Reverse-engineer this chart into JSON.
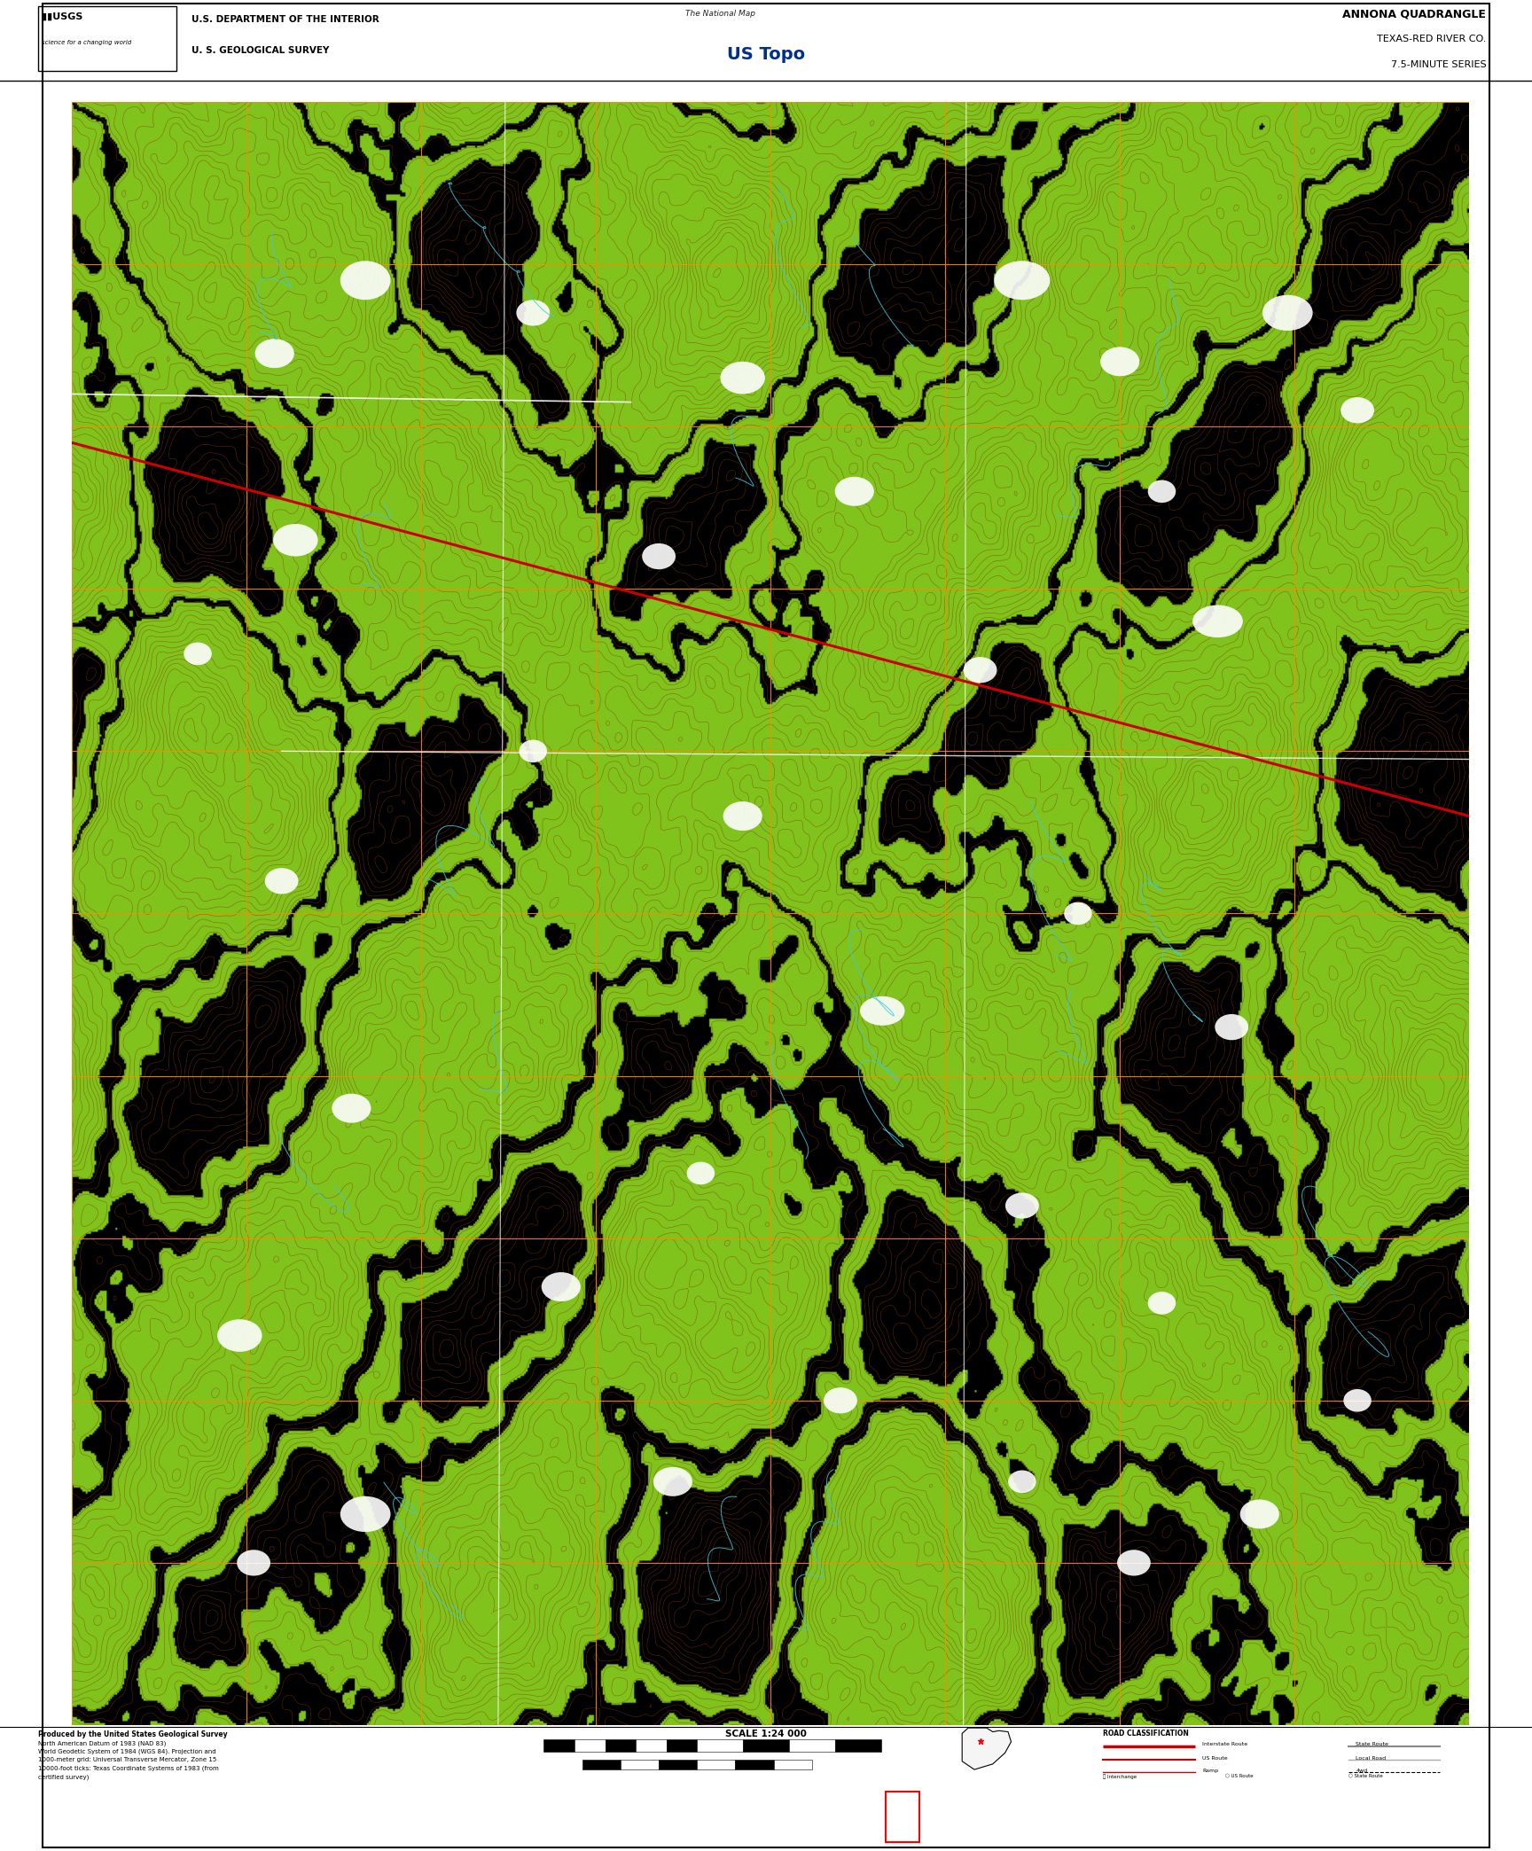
{
  "title_line1": "ANNONA QUADRANGLE",
  "title_line2": "TEXAS-RED RIVER CO.",
  "title_line3": "7.5-MINUTE SERIES",
  "header_left_line1": "U.S. DEPARTMENT OF THE INTERIOR",
  "header_left_line2": "U. S. GEOLOGICAL SURVEY",
  "header_center_line1": "The National Map",
  "header_center_line2": "US Topo",
  "scale_text": "SCALE 1:24 000",
  "produced_text": "Produced by the United States Geological Survey",
  "nad_text": "North American Datum of 1983 (NAD 83)",
  "wgs_text": "World Geodetic System of 1984 (WGS 84). Projection and",
  "text4": "1000-meter grid: Universal Transverse Mercator, Zone 15",
  "text5": "10000-foot ticks: Texas Coordinate Systems of 1983 (from",
  "text6": "certified survey)",
  "map_bg": "#000000",
  "vegetation_color": "#7fc31c",
  "contour_color": "#8B3A0A",
  "water_color": "#80d8f0",
  "road_color_primary": "#cc0000",
  "road_color_secondary": "#ffffff",
  "grid_color": "#ff8c00",
  "border_color": "#000000",
  "fig_bg": "#ffffff",
  "road_class_title": "ROAD CLASSIFICATION",
  "road_labels": [
    "Interstate Route",
    "US Route",
    "Ramp",
    "Interchange Route",
    "US Route",
    "State Route"
  ],
  "road_line_colors": [
    "#cc0000",
    "#cc0000",
    "#cc0000",
    "#4444cc",
    "#ffffff",
    "#ffffff"
  ]
}
